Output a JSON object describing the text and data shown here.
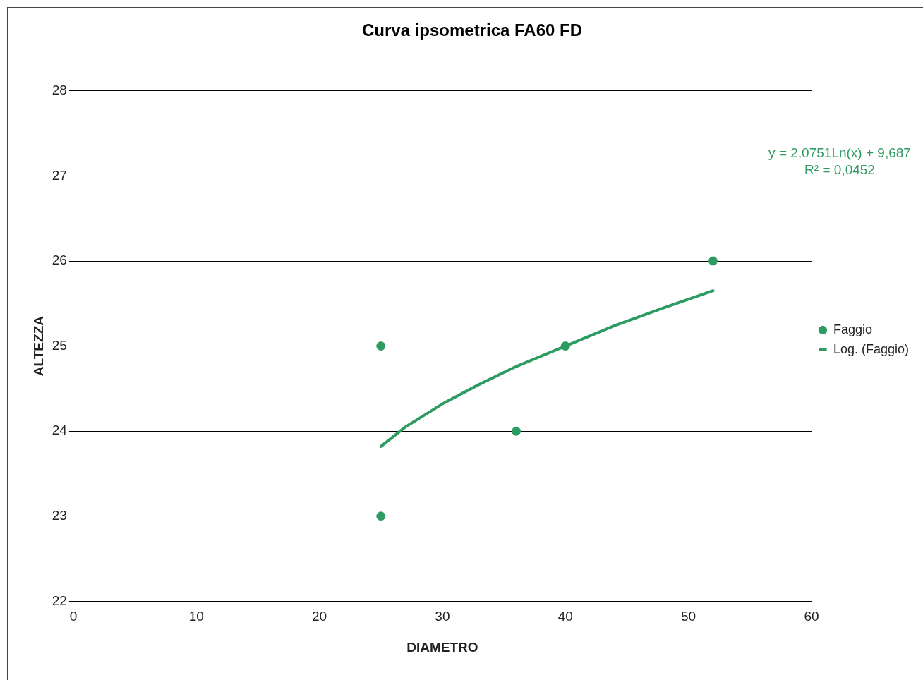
{
  "chart_data": {
    "type": "scatter",
    "title": "Curva ipsometrica FA60 FD",
    "xlabel": "DIAMETRO",
    "ylabel": "ALTEZZA",
    "series": [
      {
        "name": "Faggio",
        "color": "#2e9b62",
        "x": [
          25,
          25,
          36,
          40,
          52
        ],
        "values": [
          25,
          23,
          24,
          25,
          26
        ]
      },
      {
        "type": "line",
        "name": "Log. (Faggio)",
        "color": "#2e9b62",
        "marker": "none",
        "x": [
          25,
          27,
          30,
          33,
          36,
          40,
          44,
          48,
          52
        ],
        "values": [
          23.82,
          24.05,
          24.32,
          24.55,
          24.76,
          25.0,
          25.24,
          25.45,
          25.65
        ]
      }
    ],
    "xlim": [
      0,
      60
    ],
    "xticks": [
      0,
      10,
      20,
      30,
      40,
      50,
      60
    ],
    "ylim": [
      22,
      28
    ],
    "yticks": [
      22,
      23,
      24,
      25,
      26,
      27,
      28
    ],
    "grid": "y",
    "legend": "right",
    "marker": "circle",
    "line_style": "solid",
    "annotations": [
      "y = 2,0751Ln(x)  + 9,687",
      "R² = 0,0452"
    ]
  }
}
